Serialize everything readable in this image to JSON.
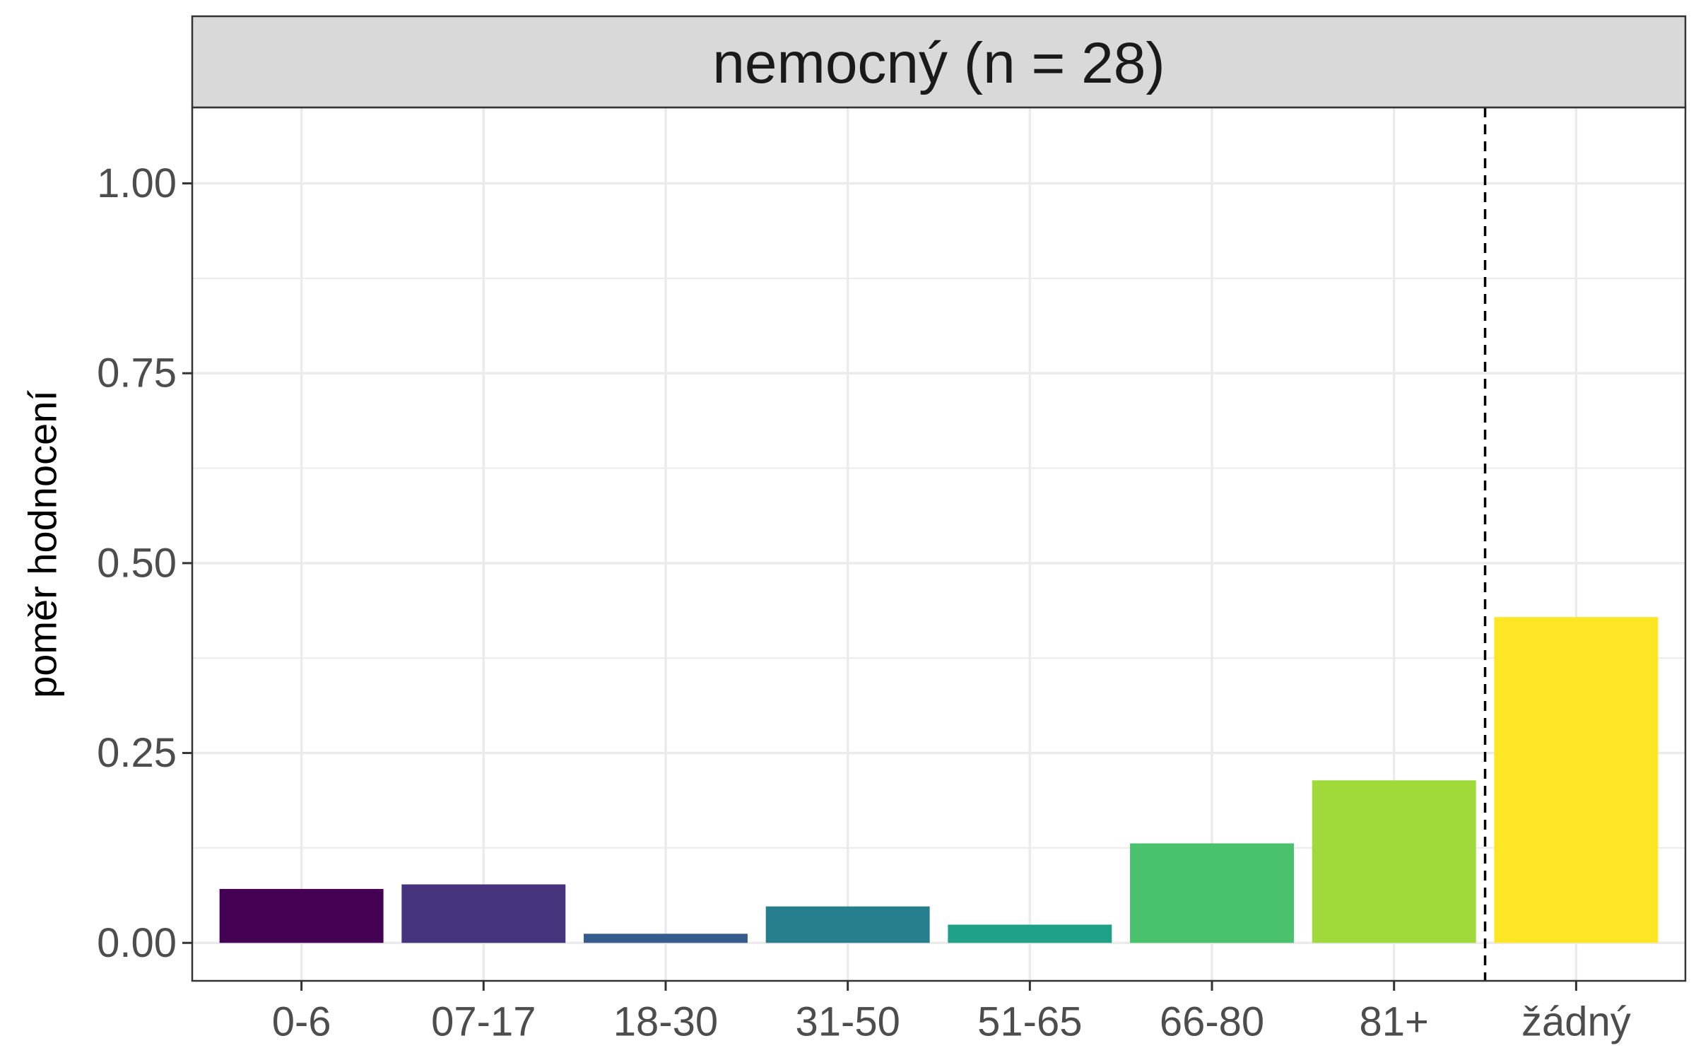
{
  "chart_data": {
    "type": "bar",
    "facet_title": "nemocný (n = 28)",
    "categories": [
      "0-6",
      "07-17",
      "18-30",
      "31-50",
      "51-65",
      "66-80",
      "81+",
      "žádný"
    ],
    "values": [
      0.071,
      0.077,
      0.012,
      0.048,
      0.024,
      0.131,
      0.214,
      0.429
    ],
    "colors": [
      "#440154",
      "#46337E",
      "#365C8D",
      "#277F8E",
      "#1FA187",
      "#4AC16D",
      "#9FDA3A",
      "#FDE725"
    ],
    "xlabel": "",
    "ylabel": "poměr hodnocení",
    "ylim": [
      -0.05,
      1.1
    ],
    "yticks": [
      0.0,
      0.25,
      0.5,
      0.75,
      1.0
    ],
    "ytick_labels": [
      "0.00",
      "0.25",
      "0.50",
      "0.75",
      "1.00"
    ],
    "grid": true,
    "reference_line": {
      "style": "dashed",
      "between": [
        "81+",
        "žádný"
      ]
    }
  }
}
